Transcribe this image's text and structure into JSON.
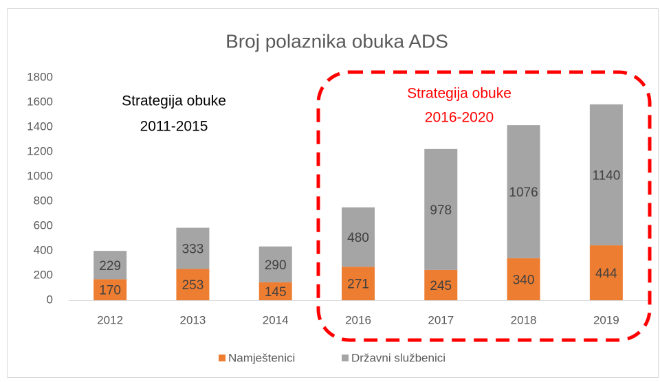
{
  "chart_data": {
    "type": "stacked_bar",
    "title": "Broj polaznika obuka ADS",
    "categories": [
      "2012",
      "2013",
      "2014",
      "2016",
      "2017",
      "2018",
      "2019"
    ],
    "series": [
      {
        "name": "Namještenici",
        "color": "#ed7d31",
        "values": [
          170,
          253,
          145,
          271,
          245,
          340,
          444
        ]
      },
      {
        "name": "Državni službenici",
        "color": "#a5a5a5",
        "values": [
          229,
          333,
          290,
          480,
          978,
          1076,
          1140
        ]
      }
    ],
    "ylim": [
      0,
      1800
    ],
    "yticks": [
      0,
      200,
      400,
      600,
      800,
      1000,
      1200,
      1400,
      1600,
      1800
    ],
    "grid": false,
    "legend": "bottom",
    "annotations": [
      {
        "lines": [
          "Strategija obuke",
          "2011-2015"
        ],
        "color": "#000000"
      },
      {
        "lines": [
          "Strategija obuke",
          "2016-2020"
        ],
        "color": "#ff0000"
      }
    ]
  }
}
